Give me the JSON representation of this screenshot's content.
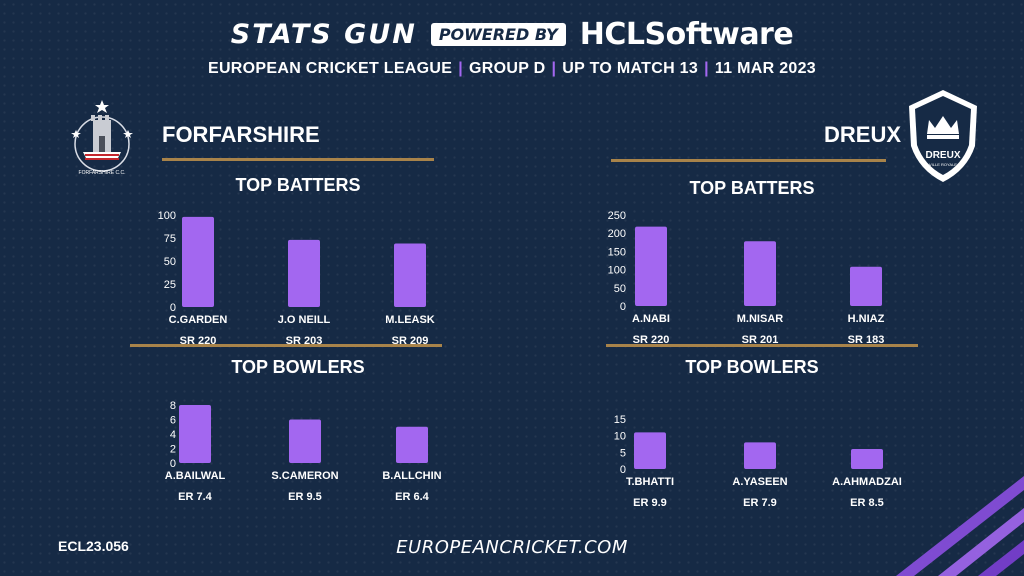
{
  "header": {
    "brand": "STATS GUN",
    "powered_by": "POWERED BY",
    "sponsor": "HCLSoftware",
    "subtitle_parts": [
      "EUROPEAN CRICKET LEAGUE",
      "GROUP  D",
      "UP TO MATCH  13",
      "11 MAR 2023"
    ]
  },
  "footer": {
    "code": "ECL23.056",
    "site": "EUROPEANCRICKET.COM"
  },
  "colors": {
    "background": "#162a45",
    "bar": "#a367f0",
    "divider": "#a8834a"
  },
  "teams": {
    "left": {
      "name": "FORFARSHIRE",
      "logo_text": "FORFARSHIRE C.C.",
      "batters_title": "TOP BATTERS",
      "bowlers_title": "TOP BOWLERS"
    },
    "right": {
      "name": "DREUX",
      "logo_text": "DREUX",
      "logo_subtext": "VILLE ROYALE",
      "batters_title": "TOP BATTERS",
      "bowlers_title": "TOP BOWLERS"
    }
  },
  "chart_data": [
    {
      "type": "bar",
      "team": "FORFARSHIRE",
      "title": "TOP BATTERS",
      "categories": [
        "C.GARDEN",
        "J.O NEILL",
        "M.LEASK"
      ],
      "values": [
        98,
        73,
        69
      ],
      "stats": [
        "SR 220",
        "SR 203",
        "SR 209"
      ],
      "ylim": [
        0,
        100
      ],
      "yticks": [
        0,
        25,
        50,
        75,
        100
      ],
      "grid": false
    },
    {
      "type": "bar",
      "team": "FORFARSHIRE",
      "title": "TOP BOWLERS",
      "categories": [
        "A.BAILWAL",
        "S.CAMERON",
        "B.ALLCHIN"
      ],
      "values": [
        8,
        6,
        5
      ],
      "stats": [
        "ER 7.4",
        "ER 9.5",
        "ER 6.4"
      ],
      "ylim": [
        0,
        8
      ],
      "yticks": [
        0,
        2,
        4,
        6,
        8
      ],
      "grid": false
    },
    {
      "type": "bar",
      "team": "DREUX",
      "title": "TOP BATTERS",
      "categories": [
        "A.NABI",
        "M.NISAR",
        "H.NIAZ"
      ],
      "values": [
        218,
        178,
        108
      ],
      "stats": [
        "SR 220",
        "SR 201",
        "SR 183"
      ],
      "ylim": [
        0,
        250
      ],
      "yticks": [
        0,
        50,
        100,
        150,
        200,
        250
      ],
      "grid": false
    },
    {
      "type": "bar",
      "team": "DREUX",
      "title": "TOP BOWLERS",
      "categories": [
        "T.BHATTI",
        "A.YASEEN",
        "A.AHMADZAI"
      ],
      "values": [
        11,
        8,
        6
      ],
      "stats": [
        "ER  9.9",
        "ER 7.9",
        "ER 8.5"
      ],
      "ylim": [
        0,
        15
      ],
      "yticks": [
        0,
        5,
        10,
        15
      ],
      "grid": false
    }
  ]
}
